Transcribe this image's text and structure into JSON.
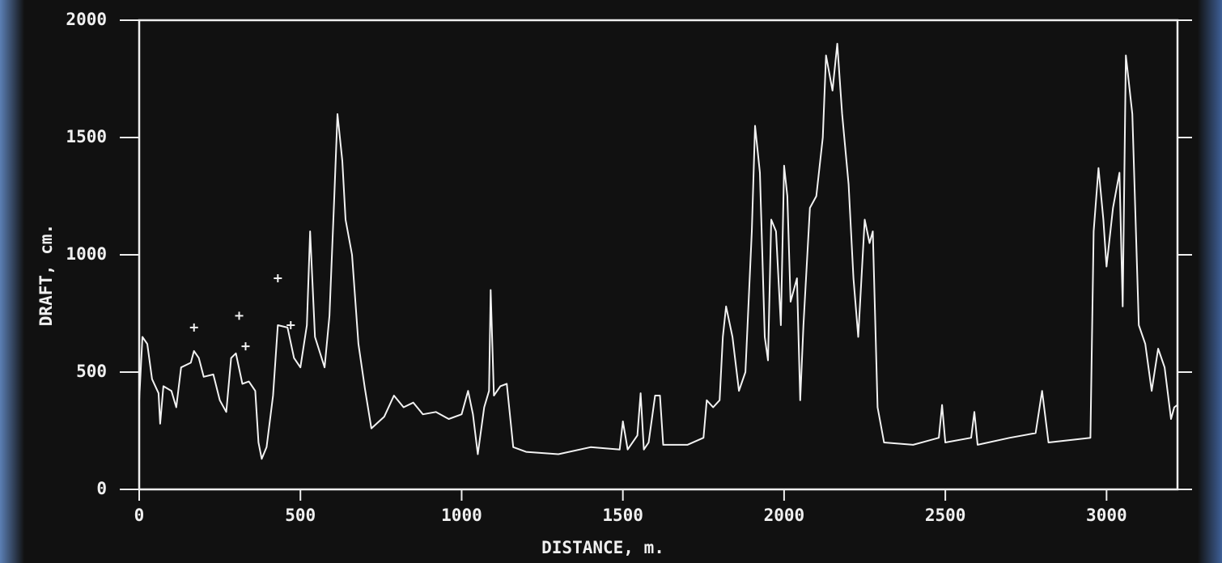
{
  "chart_data": {
    "type": "line",
    "xlabel": "DISTANCE, m.",
    "ylabel": "DRAFT, cm.",
    "xlim": [
      0,
      3220
    ],
    "ylim": [
      0,
      2000
    ],
    "xticks": [
      0,
      500,
      1000,
      1500,
      2000,
      2500,
      3000
    ],
    "yticks": [
      0,
      500,
      1000,
      1500,
      2000
    ],
    "color": "#f2f2f2",
    "series": [
      {
        "mode": "line",
        "x": [
          0,
          10,
          25,
          40,
          60,
          65,
          75,
          100,
          115,
          130,
          160,
          170,
          185,
          200,
          230,
          250,
          270,
          285,
          300,
          320,
          340,
          360,
          370,
          380,
          395,
          415,
          430,
          460,
          480,
          500,
          520,
          530,
          545,
          575,
          590,
          605,
          615,
          630,
          640,
          660,
          680,
          700,
          720,
          760,
          790,
          820,
          850,
          880,
          920,
          960,
          1000,
          1020,
          1035,
          1050,
          1070,
          1085,
          1090,
          1100,
          1120,
          1140,
          1160,
          1200,
          1300,
          1400,
          1490,
          1500,
          1515,
          1545,
          1555,
          1565,
          1580,
          1600,
          1615,
          1625,
          1700,
          1750,
          1760,
          1780,
          1800,
          1810,
          1820,
          1840,
          1860,
          1880,
          1900,
          1910,
          1925,
          1940,
          1950,
          1960,
          1975,
          1990,
          2000,
          2010,
          2020,
          2040,
          2050,
          2060,
          2080,
          2100,
          2120,
          2130,
          2150,
          2165,
          2180,
          2200,
          2215,
          2230,
          2250,
          2265,
          2275,
          2290,
          2310,
          2400,
          2480,
          2490,
          2500,
          2580,
          2590,
          2600,
          2700,
          2780,
          2800,
          2820,
          2950,
          2960,
          2975,
          2990,
          3000,
          3020,
          3040,
          3050,
          3060,
          3080,
          3100,
          3120,
          3140,
          3160,
          3180,
          3200,
          3210,
          3220
        ],
        "values": [
          380,
          650,
          620,
          470,
          410,
          280,
          440,
          420,
          350,
          520,
          540,
          590,
          560,
          480,
          490,
          380,
          330,
          560,
          580,
          450,
          460,
          420,
          200,
          130,
          180,
          400,
          700,
          690,
          560,
          520,
          700,
          1100,
          650,
          520,
          740,
          1250,
          1600,
          1400,
          1150,
          1000,
          620,
          430,
          260,
          310,
          400,
          350,
          370,
          320,
          330,
          300,
          320,
          420,
          320,
          150,
          350,
          420,
          850,
          400,
          440,
          450,
          180,
          160,
          150,
          180,
          170,
          290,
          170,
          230,
          410,
          170,
          200,
          400,
          400,
          190,
          190,
          220,
          380,
          350,
          380,
          650,
          780,
          650,
          420,
          500,
          1100,
          1550,
          1350,
          650,
          550,
          1150,
          1100,
          700,
          1380,
          1250,
          800,
          900,
          380,
          700,
          1200,
          1250,
          1500,
          1850,
          1700,
          1900,
          1600,
          1300,
          900,
          650,
          1150,
          1050,
          1100,
          350,
          200,
          190,
          220,
          360,
          200,
          220,
          330,
          190,
          220,
          240,
          420,
          200,
          220,
          1100,
          1370,
          1150,
          950,
          1200,
          1350,
          780,
          1850,
          1600,
          700,
          620,
          420,
          600,
          520,
          300,
          350,
          360
        ]
      },
      {
        "mode": "markers",
        "x": [
          170,
          310,
          330,
          430,
          470
        ],
        "values": [
          690,
          740,
          610,
          900,
          700
        ]
      }
    ]
  }
}
